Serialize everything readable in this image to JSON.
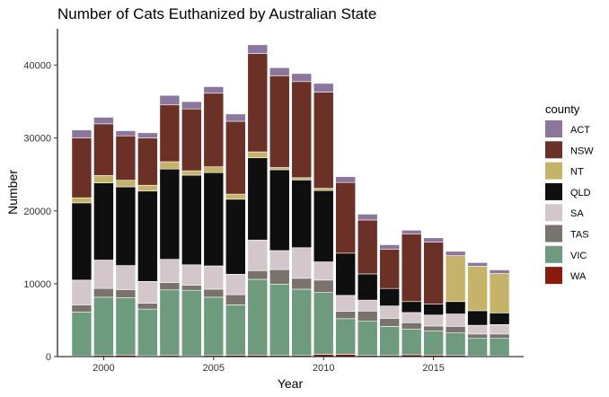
{
  "chart_data": {
    "type": "bar",
    "stacked": true,
    "title": "Number of Cats Euthanized by Australian State",
    "xlabel": "Year",
    "ylabel": "Number",
    "ylim": [
      0,
      45000
    ],
    "yticks": [
      0,
      10000,
      20000,
      30000,
      40000
    ],
    "ytick_labels": [
      "0",
      "10000",
      "20000",
      "30000",
      "40000"
    ],
    "xlim": [
      1997.9,
      2019.1
    ],
    "xticks": [
      2000,
      2005,
      2010,
      2015
    ],
    "xtick_labels": [
      "2000",
      "2005",
      "2010",
      "2015"
    ],
    "grid": false,
    "legend_title": "county",
    "legend_position": "right",
    "x": [
      1999,
      2000,
      2001,
      2002,
      2003,
      2004,
      2005,
      2006,
      2007,
      2008,
      2009,
      2010,
      2011,
      2012,
      2013,
      2014,
      2015,
      2016,
      2017,
      2018
    ],
    "series": [
      {
        "name": "WA",
        "color": "#8B1A0E",
        "values": [
          100,
          150,
          200,
          120,
          150,
          100,
          150,
          200,
          200,
          150,
          150,
          300,
          300,
          150,
          150,
          250,
          200,
          150,
          100,
          100
        ]
      },
      {
        "name": "VIC",
        "color": "#6E9B7E",
        "values": [
          6000,
          8000,
          7900,
          6400,
          9000,
          9000,
          8000,
          6900,
          10400,
          9800,
          9100,
          8500,
          4900,
          4700,
          4000,
          3500,
          3300,
          3100,
          2400,
          2400
        ]
      },
      {
        "name": "TAS",
        "color": "#7A726C",
        "values": [
          1000,
          1200,
          1100,
          800,
          1000,
          700,
          1100,
          1400,
          1200,
          2000,
          1500,
          1700,
          1000,
          1400,
          1100,
          900,
          700,
          900,
          600,
          600
        ]
      },
      {
        "name": "SA",
        "color": "#D3C7CB",
        "values": [
          3400,
          3900,
          3300,
          3000,
          3200,
          2800,
          3200,
          2800,
          4200,
          2600,
          4200,
          2500,
          2200,
          1500,
          1700,
          1400,
          1500,
          1700,
          1200,
          1300
        ]
      },
      {
        "name": "QLD",
        "color": "#0F0F0F",
        "values": [
          10600,
          10600,
          10800,
          12400,
          12400,
          12300,
          12800,
          10300,
          11300,
          11100,
          9300,
          9800,
          5800,
          3600,
          2400,
          1500,
          1500,
          1700,
          2000,
          1600
        ]
      },
      {
        "name": "NT",
        "color": "#C6B36A",
        "values": [
          700,
          1000,
          900,
          800,
          1000,
          600,
          800,
          700,
          800,
          300,
          300,
          300,
          0,
          0,
          0,
          0,
          0,
          6300,
          6100,
          5400
        ]
      },
      {
        "name": "NSW",
        "color": "#6B3126",
        "values": [
          8200,
          7100,
          6100,
          6500,
          7800,
          8500,
          10100,
          10000,
          13500,
          12600,
          13200,
          13200,
          9700,
          7400,
          5400,
          9300,
          8500,
          0,
          0,
          0
        ]
      },
      {
        "name": "ACT",
        "color": "#8C769D",
        "values": [
          1100,
          900,
          700,
          700,
          1300,
          1000,
          900,
          1000,
          1200,
          1100,
          1100,
          1200,
          800,
          800,
          600,
          500,
          600,
          600,
          500,
          500
        ]
      }
    ],
    "legend_order": [
      "ACT",
      "NSW",
      "NT",
      "QLD",
      "SA",
      "TAS",
      "VIC",
      "WA"
    ]
  }
}
